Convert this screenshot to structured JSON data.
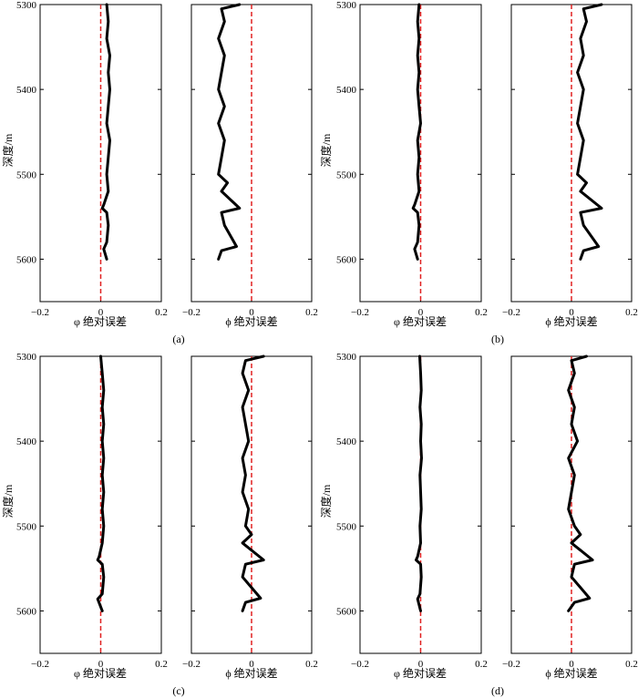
{
  "figure": {
    "ylabel": "深度/m",
    "xlabel_left": "φ 绝对误差",
    "xlabel_right": "ϕ 绝对误差",
    "panel_labels": [
      "(a)",
      "(b)",
      "(c)",
      "(d)"
    ]
  },
  "chart_data": [
    {
      "type": "line",
      "panel": "(a)",
      "subplot": "left",
      "xlabel": "φ 绝对误差",
      "ylabel": "深度/m",
      "xlim": [
        -0.2,
        0.2
      ],
      "ylim": [
        5650,
        5300
      ],
      "xticks": [
        "−0.2",
        "0",
        "0.2"
      ],
      "yticks": [
        "5300",
        "5400",
        "5500",
        "5600"
      ],
      "reference_line": {
        "x": 0,
        "style": "dashed",
        "color": "#e02020"
      },
      "series": [
        {
          "color": "#000000",
          "depth": [
            5300,
            5320,
            5340,
            5360,
            5380,
            5400,
            5420,
            5440,
            5460,
            5480,
            5500,
            5520,
            5536,
            5540,
            5545,
            5560,
            5580,
            5588,
            5600
          ],
          "values": [
            0.02,
            0.025,
            0.02,
            0.03,
            0.025,
            0.03,
            0.025,
            0.02,
            0.03,
            0.025,
            0.02,
            0.025,
            0.01,
            0.005,
            0.02,
            0.025,
            0.02,
            0.01,
            0.02
          ]
        }
      ]
    },
    {
      "type": "line",
      "panel": "(a)",
      "subplot": "right",
      "xlabel": "ϕ 绝对误差",
      "xlim": [
        -0.2,
        0.2
      ],
      "ylim": [
        5650,
        5300
      ],
      "xticks": [
        "−0.2",
        "0",
        "0.2"
      ],
      "reference_line": {
        "x": 0,
        "style": "dashed",
        "color": "#e02020"
      },
      "series": [
        {
          "color": "#000000",
          "depth": [
            5300,
            5305,
            5320,
            5340,
            5360,
            5380,
            5400,
            5420,
            5440,
            5460,
            5480,
            5500,
            5510,
            5520,
            5540,
            5545,
            5560,
            5585,
            5590,
            5600
          ],
          "values": [
            -0.04,
            -0.1,
            -0.09,
            -0.11,
            -0.09,
            -0.1,
            -0.11,
            -0.09,
            -0.11,
            -0.09,
            -0.1,
            -0.11,
            -0.08,
            -0.1,
            -0.04,
            -0.1,
            -0.09,
            -0.05,
            -0.1,
            -0.11
          ]
        }
      ]
    },
    {
      "type": "line",
      "panel": "(b)",
      "subplot": "left",
      "xlabel": "φ 绝对误差",
      "ylabel": "深度/m",
      "xlim": [
        -0.2,
        0.2
      ],
      "ylim": [
        5650,
        5300
      ],
      "xticks": [
        "−0.2",
        "0",
        "0.2"
      ],
      "yticks": [
        "5300",
        "5400",
        "5500",
        "5600"
      ],
      "reference_line": {
        "x": 0,
        "style": "dashed",
        "color": "#e02020"
      },
      "series": [
        {
          "color": "#000000",
          "depth": [
            5300,
            5320,
            5340,
            5360,
            5380,
            5400,
            5420,
            5440,
            5460,
            5480,
            5500,
            5520,
            5536,
            5540,
            5545,
            5560,
            5580,
            5588,
            5600
          ],
          "values": [
            -0.005,
            -0.01,
            -0.005,
            -0.01,
            -0.005,
            -0.01,
            -0.005,
            0,
            -0.01,
            -0.005,
            -0.01,
            -0.005,
            -0.02,
            -0.025,
            -0.01,
            -0.005,
            -0.01,
            -0.02,
            -0.01
          ]
        }
      ]
    },
    {
      "type": "line",
      "panel": "(b)",
      "subplot": "right",
      "xlabel": "ϕ 绝对误差",
      "xlim": [
        -0.2,
        0.2
      ],
      "ylim": [
        5650,
        5300
      ],
      "xticks": [
        "−0.2",
        "0",
        "0.2"
      ],
      "reference_line": {
        "x": 0,
        "style": "dashed",
        "color": "#e02020"
      },
      "series": [
        {
          "color": "#000000",
          "depth": [
            5300,
            5305,
            5320,
            5340,
            5360,
            5380,
            5400,
            5420,
            5440,
            5460,
            5480,
            5500,
            5510,
            5520,
            5540,
            5545,
            5560,
            5585,
            5590,
            5600
          ],
          "values": [
            0.1,
            0.04,
            0.05,
            0.03,
            0.04,
            0.02,
            0.04,
            0.03,
            0.02,
            0.04,
            0.03,
            0.02,
            0.05,
            0.03,
            0.1,
            0.03,
            0.04,
            0.09,
            0.04,
            0.03
          ]
        }
      ]
    },
    {
      "type": "line",
      "panel": "(c)",
      "subplot": "left",
      "xlabel": "φ 绝对误差",
      "ylabel": "深度/m",
      "xlim": [
        -0.2,
        0.2
      ],
      "ylim": [
        5650,
        5300
      ],
      "xticks": [
        "−0.2",
        "0",
        "0.2"
      ],
      "yticks": [
        "5300",
        "5400",
        "5500",
        "5600"
      ],
      "reference_line": {
        "x": 0,
        "style": "dashed",
        "color": "#e02020"
      },
      "series": [
        {
          "color": "#000000",
          "depth": [
            5300,
            5320,
            5340,
            5360,
            5380,
            5400,
            5420,
            5440,
            5460,
            5480,
            5500,
            5520,
            5536,
            5540,
            5545,
            5560,
            5580,
            5586,
            5600
          ],
          "values": [
            0,
            0.005,
            0.01,
            0.005,
            0.01,
            0.005,
            0.01,
            0.005,
            0.01,
            0.005,
            0.01,
            0.005,
            -0.005,
            -0.01,
            0.005,
            0.01,
            0.005,
            -0.01,
            0.005
          ]
        }
      ]
    },
    {
      "type": "line",
      "panel": "(c)",
      "subplot": "right",
      "xlabel": "ϕ 绝对误差",
      "xlim": [
        -0.2,
        0.2
      ],
      "ylim": [
        5650,
        5300
      ],
      "xticks": [
        "−0.2",
        "0",
        "0.2"
      ],
      "reference_line": {
        "x": 0,
        "style": "dashed",
        "color": "#e02020"
      },
      "series": [
        {
          "color": "#000000",
          "depth": [
            5300,
            5305,
            5320,
            5340,
            5360,
            5380,
            5400,
            5420,
            5440,
            5460,
            5480,
            5500,
            5510,
            5520,
            5540,
            5545,
            5560,
            5585,
            5590,
            5600
          ],
          "values": [
            0.04,
            -0.02,
            -0.03,
            -0.01,
            -0.03,
            -0.02,
            -0.01,
            -0.03,
            -0.02,
            -0.03,
            -0.01,
            -0.02,
            0,
            -0.03,
            0.04,
            -0.02,
            -0.03,
            0.03,
            -0.02,
            -0.03
          ]
        }
      ]
    },
    {
      "type": "line",
      "panel": "(d)",
      "subplot": "left",
      "xlabel": "φ 绝对误差",
      "ylabel": "深度/m",
      "xlim": [
        -0.2,
        0.2
      ],
      "ylim": [
        5650,
        5300
      ],
      "xticks": [
        "−0.2",
        "0",
        "0.2"
      ],
      "yticks": [
        "5300",
        "5400",
        "5500",
        "5600"
      ],
      "reference_line": {
        "x": 0,
        "style": "dashed",
        "color": "#e02020"
      },
      "series": [
        {
          "color": "#000000",
          "depth": [
            5300,
            5320,
            5340,
            5360,
            5380,
            5400,
            5420,
            5440,
            5460,
            5480,
            5500,
            5520,
            5536,
            5540,
            5545,
            5560,
            5580,
            5586,
            5600
          ],
          "values": [
            -0.003,
            0,
            0.002,
            -0.002,
            0.002,
            0,
            0.003,
            -0.002,
            0,
            0.002,
            -0.002,
            0,
            -0.01,
            -0.015,
            0,
            0.002,
            -0.002,
            -0.01,
            0
          ]
        }
      ]
    },
    {
      "type": "line",
      "panel": "(d)",
      "subplot": "right",
      "xlabel": "ϕ 绝对误差",
      "xlim": [
        -0.2,
        0.2
      ],
      "ylim": [
        5650,
        5300
      ],
      "xticks": [
        "−0.2",
        "0",
        "0.2"
      ],
      "reference_line": {
        "x": 0,
        "style": "dashed",
        "color": "#e02020"
      },
      "series": [
        {
          "color": "#000000",
          "depth": [
            5300,
            5305,
            5320,
            5340,
            5360,
            5380,
            5400,
            5420,
            5440,
            5460,
            5480,
            5500,
            5510,
            5520,
            5540,
            5545,
            5560,
            5585,
            5590,
            5600
          ],
          "values": [
            0.05,
            0,
            0.01,
            -0.01,
            0.01,
            0,
            0.02,
            -0.01,
            0.01,
            0,
            -0.01,
            0.01,
            0.03,
            0,
            0.07,
            0.01,
            0,
            0.06,
            0.01,
            -0.01
          ]
        }
      ]
    }
  ]
}
